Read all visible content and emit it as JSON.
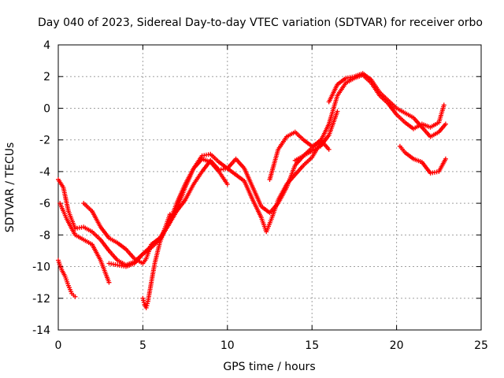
{
  "chart_data": {
    "type": "scatter",
    "title": "Day 040 of 2023, Sidereal Day-to-day VTEC variation (SDTVAR) for receiver orbo",
    "xlabel": "GPS time / hours",
    "ylabel": "SDTVAR / TECUs",
    "xlim": [
      0,
      25
    ],
    "ylim": [
      -14,
      4
    ],
    "xticks": [
      0,
      5,
      10,
      15,
      20,
      25
    ],
    "yticks": [
      -14,
      -12,
      -10,
      -8,
      -6,
      -4,
      -2,
      0,
      2,
      4
    ],
    "grid": true,
    "marker": "+",
    "color": "#ff0000",
    "series": [
      {
        "name": "s1",
        "x": [
          0.0,
          0.3,
          0.6,
          1.0,
          1.5,
          2.0,
          2.5,
          3.0,
          3.5,
          4.0,
          4.5,
          5.0,
          5.5,
          6.0,
          6.5,
          7.0,
          7.5,
          8.0,
          8.5,
          9.0,
          9.5,
          10.0
        ],
        "y": [
          -4.5,
          -5.0,
          -6.5,
          -7.6,
          -7.5,
          -7.8,
          -8.3,
          -9.0,
          -9.6,
          -9.9,
          -9.7,
          -9.2,
          -8.7,
          -8.2,
          -7.4,
          -6.0,
          -4.8,
          -3.8,
          -3.2,
          -3.4,
          -4.0,
          -4.8
        ]
      },
      {
        "name": "s2",
        "x": [
          0.0,
          0.2,
          0.4,
          0.6,
          0.8,
          1.0
        ],
        "y": [
          -9.6,
          -10.2,
          -10.6,
          -11.2,
          -11.7,
          -11.9
        ]
      },
      {
        "name": "s3",
        "x": [
          0.1,
          0.5,
          1.0,
          1.5,
          2.0,
          2.5,
          3.0
        ],
        "y": [
          -6.0,
          -7.0,
          -8.0,
          -8.3,
          -8.6,
          -9.6,
          -11.0
        ]
      },
      {
        "name": "s4",
        "x": [
          1.5,
          2.0,
          2.5,
          3.0,
          3.5,
          4.0,
          4.5,
          5.0,
          5.2,
          5.5,
          6.0,
          6.5,
          7.0,
          7.5,
          8.0,
          8.5,
          9.0,
          9.5,
          10.0,
          10.5,
          11.0,
          11.5,
          12.0,
          12.5,
          13.0,
          13.5,
          14.0,
          14.5,
          15.0,
          15.5,
          16.0
        ],
        "y": [
          -6.0,
          -6.5,
          -7.5,
          -8.2,
          -8.5,
          -8.9,
          -9.5,
          -9.8,
          -9.5,
          -8.6,
          -8.2,
          -7.4,
          -6.4,
          -5.0,
          -3.8,
          -3.0,
          -2.9,
          -3.4,
          -3.8,
          -3.2,
          -3.8,
          -5.0,
          -6.2,
          -6.6,
          -6.0,
          -5.0,
          -3.6,
          -3.0,
          -2.5,
          -2.0,
          -2.6
        ]
      },
      {
        "name": "s5",
        "x": [
          3.0,
          3.5,
          4.0,
          4.5,
          5.0,
          5.5,
          6.0,
          6.5,
          7.0,
          7.5,
          8.0,
          8.5,
          9.0,
          9.5,
          10.0,
          10.5,
          11.0,
          11.5,
          12.0,
          12.3,
          12.6,
          13.0,
          13.5,
          14.0,
          14.5,
          15.0,
          15.5
        ],
        "y": [
          -9.8,
          -9.9,
          -10.0,
          -9.8,
          -9.2,
          -8.8,
          -8.3,
          -7.4,
          -6.5,
          -5.8,
          -4.8,
          -4.0,
          -3.3,
          -3.9,
          -3.8,
          -4.2,
          -4.6,
          -5.8,
          -6.9,
          -7.8,
          -7.0,
          -5.8,
          -4.8,
          -4.2,
          -3.6,
          -3.1,
          -2.2
        ]
      },
      {
        "name": "s6",
        "x": [
          5.0,
          5.1,
          5.2,
          5.3,
          5.5,
          5.7,
          6.0,
          6.3,
          6.6
        ],
        "y": [
          -12.0,
          -12.4,
          -12.6,
          -12.2,
          -11.0,
          -9.8,
          -8.5,
          -7.6,
          -6.7
        ]
      },
      {
        "name": "s7",
        "x": [
          12.5,
          13.0,
          13.5,
          14.0,
          14.5,
          15.0,
          15.5,
          16.0,
          16.5,
          17.0,
          17.5,
          18.0,
          18.5,
          19.0,
          19.5,
          20.0,
          20.5,
          21.0,
          21.5,
          22.0,
          22.5,
          22.8
        ],
        "y": [
          -4.5,
          -2.6,
          -1.8,
          -1.5,
          -2.0,
          -2.4,
          -2.1,
          -1.0,
          0.8,
          1.6,
          1.9,
          2.1,
          1.6,
          0.8,
          0.3,
          -0.4,
          -0.9,
          -1.3,
          -1.0,
          -1.2,
          -0.9,
          0.2
        ]
      },
      {
        "name": "s8",
        "x": [
          16.0,
          16.5,
          17.0,
          17.5,
          18.0,
          18.5,
          19.0,
          19.5,
          20.0,
          20.5,
          21.0,
          21.5,
          22.0,
          22.5,
          22.9
        ],
        "y": [
          0.4,
          1.5,
          1.9,
          2.0,
          2.2,
          1.8,
          1.0,
          0.5,
          0.0,
          -0.3,
          -0.6,
          -1.2,
          -1.8,
          -1.5,
          -1.0
        ]
      },
      {
        "name": "s9",
        "x": [
          20.2,
          20.5,
          21.0,
          21.5,
          22.0,
          22.5,
          22.9
        ],
        "y": [
          -2.4,
          -2.8,
          -3.2,
          -3.4,
          -4.1,
          -4.0,
          -3.2
        ]
      },
      {
        "name": "s10",
        "x": [
          14.0,
          14.5,
          15.0,
          15.5,
          16.0,
          16.5
        ],
        "y": [
          -3.3,
          -3.0,
          -2.7,
          -2.4,
          -1.7,
          -0.2
        ]
      }
    ]
  }
}
